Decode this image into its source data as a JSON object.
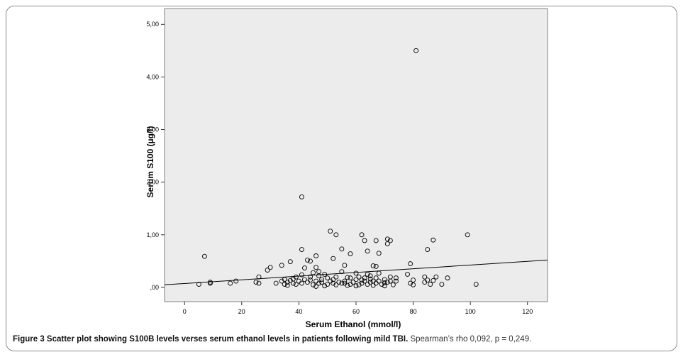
{
  "caption": {
    "bold": "Figure 3 Scatter plot showing S100B levels verses serum ethanol levels in patients following mild TBI.",
    "rest": "Spearman’s rho 0,092, p = 0,249."
  },
  "colors": {
    "plot_background": "#ececec",
    "marker_stroke": "#000000",
    "line": "#000000"
  },
  "chart_data": {
    "type": "scatter",
    "title": "",
    "xlabel": "Serum Ethanol (mmol/l)",
    "ylabel": "Serum S100 (µg/l)",
    "xlim": [
      -7,
      127
    ],
    "ylim": [
      -0.27,
      5.3
    ],
    "x_ticks": [
      0,
      20,
      40,
      60,
      80,
      100,
      120
    ],
    "x_tick_labels": [
      "0",
      "20",
      "40",
      "60",
      "80",
      "100",
      "120"
    ],
    "y_ticks": [
      0,
      1,
      2,
      3,
      4,
      5
    ],
    "y_tick_labels": [
      ",00",
      "1,00",
      "2,00",
      "3,00",
      "4,00",
      "5,00"
    ],
    "grid": false,
    "legend": "none",
    "fit_line": {
      "x": [
        -7,
        127
      ],
      "y": [
        0.05,
        0.52
      ]
    },
    "points": [
      [
        81,
        4.5
      ],
      [
        41,
        1.72
      ],
      [
        51,
        1.07
      ],
      [
        53,
        1.0
      ],
      [
        62,
        1.0
      ],
      [
        99,
        1.0
      ],
      [
        7,
        0.59
      ],
      [
        41,
        0.72
      ],
      [
        55,
        0.73
      ],
      [
        63,
        0.89
      ],
      [
        67,
        0.89
      ],
      [
        71,
        0.92
      ],
      [
        72,
        0.89
      ],
      [
        87,
        0.9
      ],
      [
        85,
        0.72
      ],
      [
        64,
        0.69
      ],
      [
        68,
        0.65
      ],
      [
        71,
        0.83
      ],
      [
        58,
        0.64
      ],
      [
        46,
        0.6
      ],
      [
        79,
        0.45
      ],
      [
        52,
        0.55
      ],
      [
        43,
        0.52
      ],
      [
        44,
        0.5
      ],
      [
        37,
        0.49
      ],
      [
        56,
        0.42
      ],
      [
        66,
        0.41
      ],
      [
        67,
        0.4
      ],
      [
        30,
        0.38
      ],
      [
        29,
        0.33
      ],
      [
        34,
        0.42
      ],
      [
        46,
        0.38
      ],
      [
        42,
        0.37
      ],
      [
        47,
        0.3
      ],
      [
        45,
        0.28
      ],
      [
        49,
        0.25
      ],
      [
        55,
        0.3
      ],
      [
        60,
        0.27
      ],
      [
        64,
        0.25
      ],
      [
        68,
        0.27
      ],
      [
        72,
        0.2
      ],
      [
        78,
        0.25
      ],
      [
        84,
        0.2
      ],
      [
        88,
        0.2
      ],
      [
        92,
        0.18
      ],
      [
        26,
        0.2
      ],
      [
        39,
        0.2
      ],
      [
        41,
        0.24
      ],
      [
        44,
        0.2
      ],
      [
        48,
        0.15
      ],
      [
        50,
        0.18
      ],
      [
        53,
        0.2
      ],
      [
        57,
        0.19
      ],
      [
        61,
        0.2
      ],
      [
        63,
        0.18
      ],
      [
        65,
        0.22
      ],
      [
        67,
        0.18
      ],
      [
        70,
        0.15
      ],
      [
        74,
        0.18
      ],
      [
        80,
        0.14
      ],
      [
        85,
        0.14
      ],
      [
        87,
        0.13
      ],
      [
        5,
        0.06
      ],
      [
        9,
        0.08
      ],
      [
        9,
        0.1
      ],
      [
        16,
        0.08
      ],
      [
        18,
        0.12
      ],
      [
        25,
        0.1
      ],
      [
        26,
        0.08
      ],
      [
        32,
        0.08
      ],
      [
        34,
        0.12
      ],
      [
        35,
        0.15
      ],
      [
        36,
        0.1
      ],
      [
        37,
        0.13
      ],
      [
        38,
        0.08
      ],
      [
        39,
        0.06
      ],
      [
        40,
        0.12
      ],
      [
        41,
        0.08
      ],
      [
        42,
        0.15
      ],
      [
        43,
        0.1
      ],
      [
        45,
        0.05
      ],
      [
        46,
        0.12
      ],
      [
        47,
        0.08
      ],
      [
        48,
        0.1
      ],
      [
        49,
        0.03
      ],
      [
        50,
        0.06
      ],
      [
        51,
        0.12
      ],
      [
        52,
        0.08
      ],
      [
        53,
        0.05
      ],
      [
        54,
        0.1
      ],
      [
        55,
        0.08
      ],
      [
        56,
        0.12
      ],
      [
        57,
        0.04
      ],
      [
        58,
        0.06
      ],
      [
        59,
        0.1
      ],
      [
        60,
        0.15
      ],
      [
        61,
        0.05
      ],
      [
        62,
        0.08
      ],
      [
        63,
        0.12
      ],
      [
        64,
        0.06
      ],
      [
        65,
        0.1
      ],
      [
        66,
        0.04
      ],
      [
        67,
        0.08
      ],
      [
        68,
        0.12
      ],
      [
        69,
        0.06
      ],
      [
        70,
        0.03
      ],
      [
        71,
        0.1
      ],
      [
        72,
        0.12
      ],
      [
        73,
        0.05
      ],
      [
        79,
        0.08
      ],
      [
        80,
        0.05
      ],
      [
        84,
        0.1
      ],
      [
        86,
        0.06
      ],
      [
        90,
        0.06
      ],
      [
        102,
        0.06
      ],
      [
        35,
        0.06
      ],
      [
        38,
        0.16
      ],
      [
        44,
        0.14
      ],
      [
        46,
        0.02
      ],
      [
        52,
        0.15
      ],
      [
        56,
        0.08
      ],
      [
        60,
        0.03
      ],
      [
        62,
        0.14
      ],
      [
        65,
        0.16
      ],
      [
        70,
        0.09
      ],
      [
        74,
        0.12
      ],
      [
        36,
        0.04
      ],
      [
        58,
        0.18
      ],
      [
        47,
        0.22
      ],
      [
        66,
        0.12
      ]
    ]
  }
}
